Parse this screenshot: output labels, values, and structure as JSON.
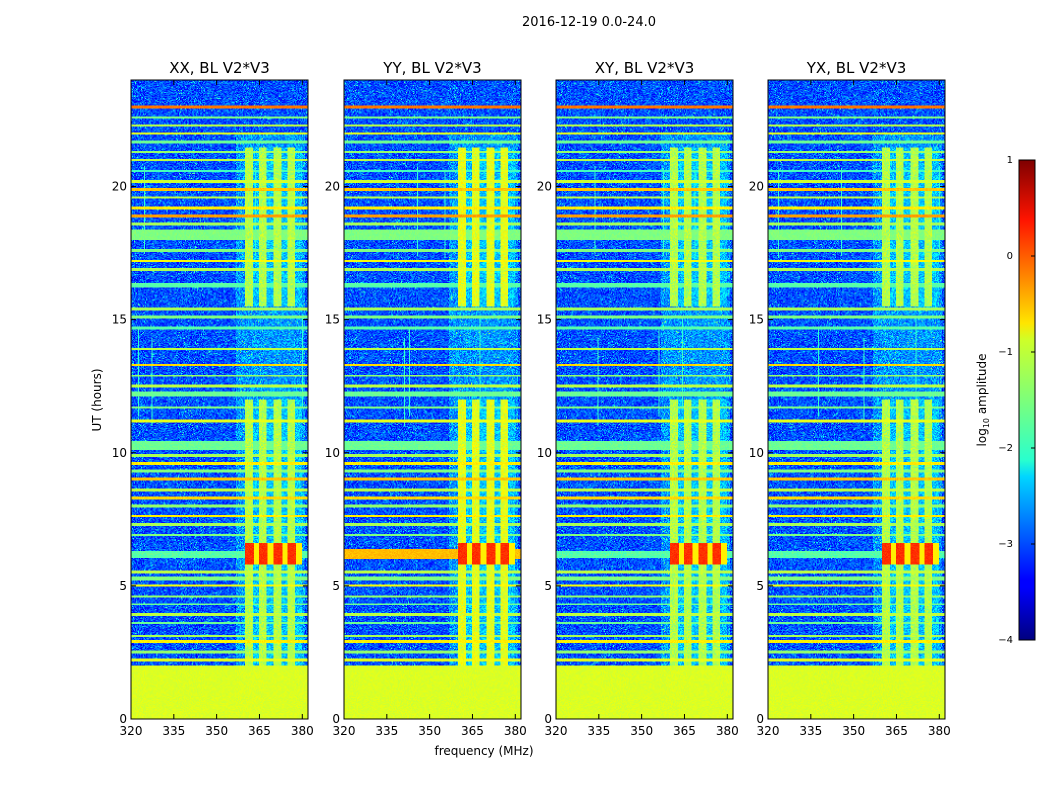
{
  "chart_data": {
    "type": "heatmap",
    "suptitle": "2016-12-19 0.0-24.0",
    "xlabel": "frequency (MHz)",
    "ylabel": "UT (hours)",
    "xlim": [
      320,
      382
    ],
    "ylim": [
      0,
      24
    ],
    "xticks": [
      320,
      335,
      350,
      365,
      380
    ],
    "yticks": [
      0,
      5,
      10,
      15,
      20
    ],
    "panels": [
      {
        "title": "XX, BL V2*V3",
        "pol": "XX"
      },
      {
        "title": "YY, BL V2*V3",
        "pol": "YY"
      },
      {
        "title": "XY, BL V2*V3",
        "pol": "XY"
      },
      {
        "title": "YX, BL V2*V3",
        "pol": "YX"
      }
    ],
    "colorbar": {
      "label": "log10 amplitude",
      "label_main": "log",
      "label_sub": "10",
      "label_rest": " amplitude",
      "range": [
        -4,
        1
      ],
      "ticks": [
        1,
        0,
        -1,
        -2,
        -3,
        -4
      ],
      "colormap": "jet"
    },
    "features": {
      "rfi_band_mhz": [
        360,
        380
      ],
      "rfi_active_hours": [
        [
          2.0,
          12.0
        ],
        [
          15.5,
          21.5
        ]
      ],
      "bright_rfi_hours": [
        5.8,
        6.6
      ],
      "low_time_band_hours": [
        0.0,
        2.0
      ],
      "noise_level_log10": -3.0
    }
  }
}
